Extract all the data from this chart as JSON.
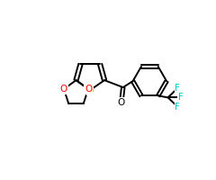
{
  "bg_color": "#ffffff",
  "atom_colors": {
    "S": "#cccc00",
    "O": "#ff0000",
    "F": "#00cccc",
    "C": "#000000"
  },
  "bond_color": "#000000",
  "bond_width": 1.4,
  "figsize": [
    2.4,
    2.0
  ],
  "dpi": 100,
  "xlim": [
    0,
    12
  ],
  "ylim": [
    0,
    10
  ]
}
